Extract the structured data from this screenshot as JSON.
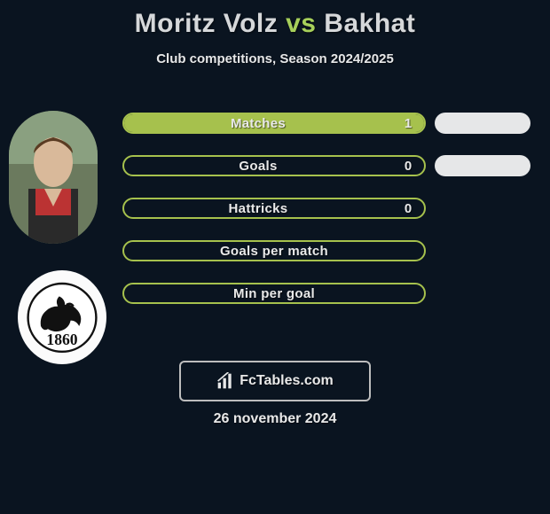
{
  "title": {
    "player1": "Moritz Volz",
    "vs": "vs",
    "player2": "Bakhat"
  },
  "subtitle": "Club competitions, Season 2024/2025",
  "stats": [
    {
      "label": "Matches",
      "left_value": "1",
      "left_filled": true,
      "has_right": true
    },
    {
      "label": "Goals",
      "left_value": "0",
      "left_filled": false,
      "has_right": true
    },
    {
      "label": "Hattricks",
      "left_value": "0",
      "left_filled": false,
      "has_right": false
    },
    {
      "label": "Goals per match",
      "left_value": "",
      "left_filled": false,
      "has_right": false
    },
    {
      "label": "Min per goal",
      "left_value": "",
      "left_filled": false,
      "has_right": false
    }
  ],
  "footer": {
    "site": "FcTables.com",
    "date": "26 november 2024"
  },
  "colors": {
    "background": "#0a1420",
    "accent": "#a6c14d",
    "pill_light": "#e6e7e8",
    "text": "#e9e9e9",
    "border_gray": "#bdbdbd"
  },
  "club_badge_year": "1860"
}
